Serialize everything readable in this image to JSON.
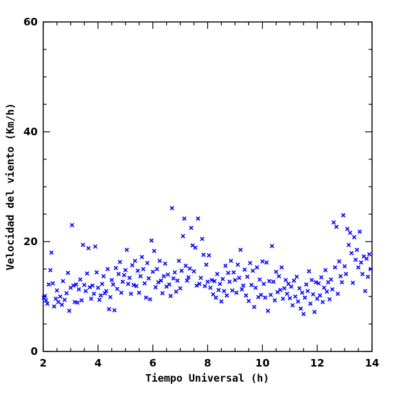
{
  "chart_data": {
    "type": "scatter",
    "title": "",
    "xlabel": "Tiempo Universal (h)",
    "ylabel": "Velocidad del viento (Km/h)",
    "xlim": [
      2,
      14
    ],
    "ylim": [
      0,
      60
    ],
    "x_ticks": [
      2,
      4,
      6,
      8,
      10,
      12,
      14
    ],
    "y_ticks": [
      0,
      20,
      40,
      60
    ],
    "grid": false,
    "legend": "none",
    "marker": "x",
    "color": "#0000ff",
    "points": [
      [
        2.02,
        9.8
      ],
      [
        2.06,
        10.1
      ],
      [
        2.1,
        9.3
      ],
      [
        2.15,
        8.7
      ],
      [
        2.2,
        12.2
      ],
      [
        2.26,
        14.8
      ],
      [
        2.3,
        18.0
      ],
      [
        2.35,
        12.4
      ],
      [
        2.4,
        8.2
      ],
      [
        2.46,
        9.6
      ],
      [
        2.5,
        11.1
      ],
      [
        2.55,
        9.0
      ],
      [
        2.62,
        10.0
      ],
      [
        2.68,
        8.5
      ],
      [
        2.72,
        12.8
      ],
      [
        2.78,
        9.4
      ],
      [
        2.85,
        10.6
      ],
      [
        2.9,
        14.3
      ],
      [
        2.95,
        7.4
      ],
      [
        3.0,
        11.6
      ],
      [
        3.05,
        23.0
      ],
      [
        3.1,
        12.0
      ],
      [
        3.15,
        9.0
      ],
      [
        3.2,
        12.2
      ],
      [
        3.25,
        8.9
      ],
      [
        3.3,
        11.3
      ],
      [
        3.35,
        13.1
      ],
      [
        3.4,
        9.3
      ],
      [
        3.45,
        19.4
      ],
      [
        3.5,
        12.1
      ],
      [
        3.55,
        11.0
      ],
      [
        3.6,
        14.2
      ],
      [
        3.65,
        18.8
      ],
      [
        3.7,
        11.7
      ],
      [
        3.75,
        9.6
      ],
      [
        3.8,
        12.0
      ],
      [
        3.85,
        10.5
      ],
      [
        3.9,
        19.1
      ],
      [
        3.95,
        14.4
      ],
      [
        4.0,
        11.6
      ],
      [
        4.05,
        9.4
      ],
      [
        4.1,
        10.2
      ],
      [
        4.15,
        12.3
      ],
      [
        4.2,
        13.7
      ],
      [
        4.25,
        10.6
      ],
      [
        4.3,
        11.0
      ],
      [
        4.35,
        15.0
      ],
      [
        4.4,
        7.7
      ],
      [
        4.45,
        9.9
      ],
      [
        4.5,
        13.0
      ],
      [
        4.55,
        12.2
      ],
      [
        4.6,
        7.5
      ],
      [
        4.65,
        15.2
      ],
      [
        4.7,
        11.4
      ],
      [
        4.75,
        14.1
      ],
      [
        4.8,
        16.3
      ],
      [
        4.85,
        10.7
      ],
      [
        4.9,
        12.7
      ],
      [
        4.95,
        13.9
      ],
      [
        5.0,
        14.8
      ],
      [
        5.05,
        18.5
      ],
      [
        5.1,
        12.3
      ],
      [
        5.15,
        13.4
      ],
      [
        5.2,
        10.5
      ],
      [
        5.25,
        15.7
      ],
      [
        5.3,
        12.1
      ],
      [
        5.35,
        16.5
      ],
      [
        5.4,
        11.9
      ],
      [
        5.45,
        14.7
      ],
      [
        5.5,
        10.7
      ],
      [
        5.55,
        13.7
      ],
      [
        5.6,
        17.2
      ],
      [
        5.65,
        15.0
      ],
      [
        5.7,
        12.4
      ],
      [
        5.75,
        9.8
      ],
      [
        5.8,
        16.1
      ],
      [
        5.85,
        13.3
      ],
      [
        5.9,
        9.5
      ],
      [
        5.95,
        20.2
      ],
      [
        6.0,
        14.5
      ],
      [
        6.05,
        18.3
      ],
      [
        6.1,
        11.7
      ],
      [
        6.15,
        15.0
      ],
      [
        6.2,
        12.6
      ],
      [
        6.25,
        16.5
      ],
      [
        6.3,
        12.9
      ],
      [
        6.35,
        10.6
      ],
      [
        6.4,
        13.7
      ],
      [
        6.45,
        16.0
      ],
      [
        6.5,
        11.8
      ],
      [
        6.55,
        14.0
      ],
      [
        6.6,
        12.2
      ],
      [
        6.65,
        10.1
      ],
      [
        6.7,
        26.1
      ],
      [
        6.75,
        13.3
      ],
      [
        6.8,
        14.4
      ],
      [
        6.85,
        10.9
      ],
      [
        6.9,
        12.9
      ],
      [
        6.95,
        16.5
      ],
      [
        7.0,
        11.5
      ],
      [
        7.05,
        14.7
      ],
      [
        7.1,
        21.0
      ],
      [
        7.15,
        24.2
      ],
      [
        7.2,
        15.6
      ],
      [
        7.25,
        12.9
      ],
      [
        7.3,
        13.5
      ],
      [
        7.35,
        15.1
      ],
      [
        7.4,
        22.5
      ],
      [
        7.45,
        19.3
      ],
      [
        7.5,
        14.6
      ],
      [
        7.55,
        18.9
      ],
      [
        7.6,
        12.0
      ],
      [
        7.65,
        24.2
      ],
      [
        7.7,
        12.3
      ],
      [
        7.75,
        13.4
      ],
      [
        7.8,
        20.5
      ],
      [
        7.85,
        17.6
      ],
      [
        7.9,
        11.9
      ],
      [
        7.95,
        15.8
      ],
      [
        8.0,
        12.7
      ],
      [
        8.05,
        17.5
      ],
      [
        8.1,
        11.6
      ],
      [
        8.15,
        13.0
      ],
      [
        8.2,
        10.4
      ],
      [
        8.25,
        12.8
      ],
      [
        8.3,
        9.8
      ],
      [
        8.35,
        14.1
      ],
      [
        8.4,
        11.2
      ],
      [
        8.45,
        12.3
      ],
      [
        8.5,
        9.1
      ],
      [
        8.55,
        13.2
      ],
      [
        8.6,
        11.0
      ],
      [
        8.65,
        15.6
      ],
      [
        8.7,
        10.2
      ],
      [
        8.75,
        14.3
      ],
      [
        8.8,
        12.7
      ],
      [
        8.85,
        16.5
      ],
      [
        8.9,
        11.1
      ],
      [
        8.95,
        14.4
      ],
      [
        9.0,
        13.0
      ],
      [
        9.05,
        10.7
      ],
      [
        9.1,
        15.8
      ],
      [
        9.15,
        13.4
      ],
      [
        9.2,
        18.5
      ],
      [
        9.25,
        11.3
      ],
      [
        9.3,
        12.0
      ],
      [
        9.35,
        14.9
      ],
      [
        9.4,
        10.2
      ],
      [
        9.45,
        13.6
      ],
      [
        9.5,
        9.2
      ],
      [
        9.55,
        16.1
      ],
      [
        9.6,
        12.1
      ],
      [
        9.65,
        14.7
      ],
      [
        9.7,
        8.1
      ],
      [
        9.75,
        11.6
      ],
      [
        9.8,
        15.3
      ],
      [
        9.85,
        9.9
      ],
      [
        9.9,
        13.1
      ],
      [
        9.95,
        10.3
      ],
      [
        10.0,
        16.4
      ],
      [
        10.05,
        12.3
      ],
      [
        10.1,
        9.8
      ],
      [
        10.15,
        16.2
      ],
      [
        10.2,
        7.4
      ],
      [
        10.25,
        12.8
      ],
      [
        10.3,
        10.3
      ],
      [
        10.35,
        19.2
      ],
      [
        10.4,
        12.7
      ],
      [
        10.45,
        9.3
      ],
      [
        10.5,
        14.5
      ],
      [
        10.55,
        10.8
      ],
      [
        10.6,
        13.7
      ],
      [
        10.65,
        11.2
      ],
      [
        10.7,
        15.3
      ],
      [
        10.75,
        9.6
      ],
      [
        10.8,
        11.5
      ],
      [
        10.85,
        13.0
      ],
      [
        10.9,
        10.5
      ],
      [
        10.95,
        12.3
      ],
      [
        11.0,
        9.7
      ],
      [
        11.05,
        11.8
      ],
      [
        11.1,
        8.4
      ],
      [
        11.15,
        12.9
      ],
      [
        11.2,
        10.0
      ],
      [
        11.25,
        13.6
      ],
      [
        11.3,
        9.1
      ],
      [
        11.35,
        11.5
      ],
      [
        11.4,
        7.8
      ],
      [
        11.45,
        10.7
      ],
      [
        11.5,
        6.8
      ],
      [
        11.55,
        9.8
      ],
      [
        11.6,
        12.2
      ],
      [
        11.65,
        11.0
      ],
      [
        11.7,
        14.6
      ],
      [
        11.75,
        8.7
      ],
      [
        11.8,
        13.0
      ],
      [
        11.85,
        10.4
      ],
      [
        11.9,
        7.2
      ],
      [
        11.95,
        12.6
      ],
      [
        12.0,
        9.6
      ],
      [
        12.05,
        12.4
      ],
      [
        12.1,
        10.2
      ],
      [
        12.15,
        13.5
      ],
      [
        12.2,
        9.0
      ],
      [
        12.25,
        11.6
      ],
      [
        12.3,
        14.8
      ],
      [
        12.35,
        10.9
      ],
      [
        12.4,
        12.6
      ],
      [
        12.45,
        9.5
      ],
      [
        12.5,
        13.1
      ],
      [
        12.55,
        11.3
      ],
      [
        12.6,
        23.5
      ],
      [
        12.65,
        15.3
      ],
      [
        12.7,
        22.7
      ],
      [
        12.75,
        10.5
      ],
      [
        12.8,
        16.4
      ],
      [
        12.85,
        13.7
      ],
      [
        12.9,
        12.6
      ],
      [
        12.95,
        24.8
      ],
      [
        13.0,
        15.5
      ],
      [
        13.05,
        14.1
      ],
      [
        13.1,
        22.3
      ],
      [
        13.15,
        19.4
      ],
      [
        13.2,
        21.6
      ],
      [
        13.25,
        17.9
      ],
      [
        13.3,
        12.5
      ],
      [
        13.35,
        20.8
      ],
      [
        13.4,
        16.7
      ],
      [
        13.45,
        18.5
      ],
      [
        13.5,
        15.3
      ],
      [
        13.55,
        21.8
      ],
      [
        13.6,
        16.2
      ],
      [
        13.65,
        14.1
      ],
      [
        13.7,
        17.3
      ],
      [
        13.75,
        11.0
      ],
      [
        13.8,
        16.9
      ],
      [
        13.85,
        13.6
      ],
      [
        13.9,
        17.7
      ],
      [
        13.95,
        15.0
      ]
    ]
  }
}
